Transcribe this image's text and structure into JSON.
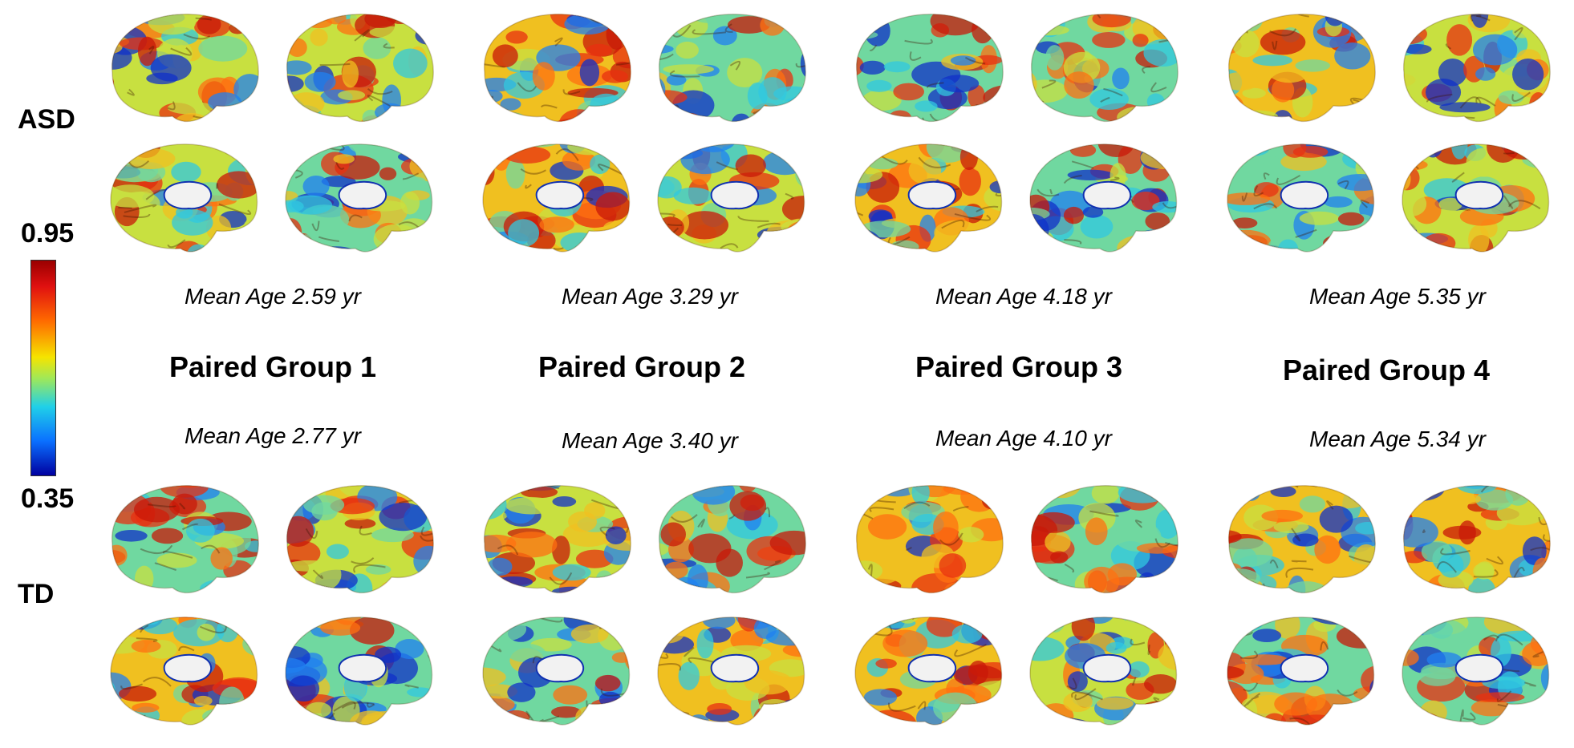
{
  "rows": {
    "top_label": "ASD",
    "bottom_label": "TD"
  },
  "colorbar": {
    "max_label": "0.95",
    "min_label": "0.35"
  },
  "groups": [
    {
      "title": "Paired Group 1",
      "asd_age": "Mean Age 2.59 yr",
      "td_age": "Mean Age 2.77 yr"
    },
    {
      "title": "Paired Group 2",
      "asd_age": "Mean Age 3.29 yr",
      "td_age": "Mean Age 3.40 yr"
    },
    {
      "title": "Paired Group 3",
      "asd_age": "Mean Age 4.18 yr",
      "td_age": "Mean Age 4.10 yr"
    },
    {
      "title": "Paired Group 4",
      "asd_age": "Mean Age 5.35 yr",
      "td_age": "Mean Age 5.34 yr"
    }
  ],
  "colors": {
    "high": "#d41a0a",
    "mid": "#f0d020",
    "low": "#1a50e0"
  }
}
